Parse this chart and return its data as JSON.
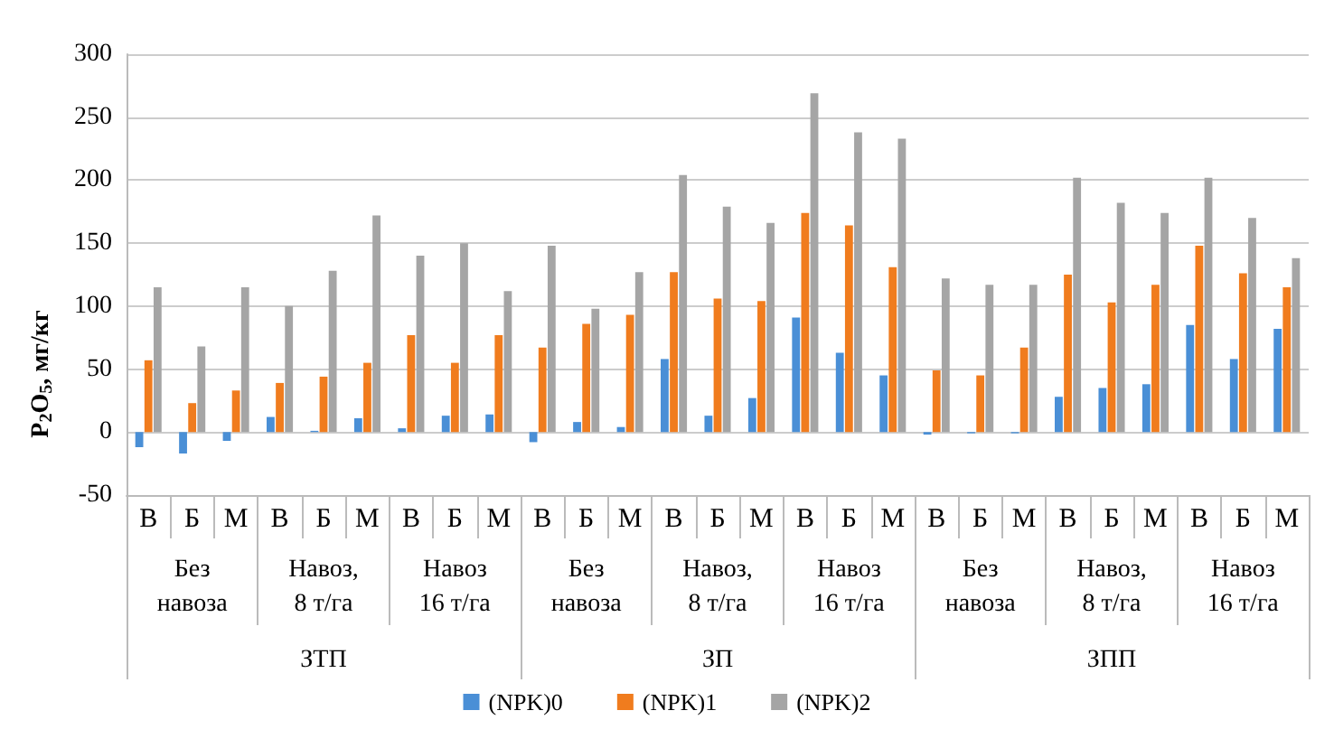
{
  "chart_data": {
    "type": "bar",
    "ylabel": "P$_{2}$O$_{5}$, мг/кг",
    "categories": [
      "В",
      "Б",
      "М",
      "В",
      "Б",
      "М",
      "В",
      "Б",
      "М",
      "В",
      "Б",
      "М",
      "В",
      "Б",
      "М",
      "В",
      "Б",
      "М",
      "В",
      "Б",
      "М",
      "В",
      "Б",
      "М",
      "В",
      "Б",
      "М"
    ],
    "series": [
      {
        "name": "(NPK)0",
        "color": "#4a8fd6",
        "values": [
          -12,
          -17,
          -7,
          12,
          1,
          11,
          3,
          13,
          14,
          -8,
          8,
          4,
          58,
          13,
          27,
          91,
          63,
          45,
          -2,
          -1,
          -1,
          28,
          35,
          38,
          85,
          58,
          82
        ]
      },
      {
        "name": "(NPK)1",
        "color": "#f07c1e",
        "values": [
          57,
          23,
          33,
          39,
          44,
          55,
          77,
          55,
          77,
          67,
          86,
          93,
          127,
          106,
          104,
          174,
          164,
          131,
          49,
          45,
          67,
          125,
          103,
          117,
          148,
          126,
          115
        ]
      },
      {
        "name": "(NPK)2",
        "color": "#a5a5a5",
        "values": [
          115,
          68,
          115,
          100,
          128,
          172,
          140,
          150,
          112,
          148,
          98,
          127,
          204,
          179,
          166,
          269,
          238,
          233,
          122,
          117,
          117,
          202,
          182,
          174,
          202,
          170,
          138
        ]
      }
    ],
    "annotations": [
      "Без навоза",
      "Навоз, 8 т/га",
      "Навоз 16 т/га",
      "Без навоза",
      "Навоз, 8 т/га",
      "Навоз 16 т/га",
      "Без навоза",
      "Навоз, 8 т/га",
      "Навоз 16 т/га",
      "ЗТП",
      "ЗП",
      "ЗПП"
    ],
    "ylim": [
      -50,
      300
    ],
    "yticks": [
      -50,
      0,
      50,
      100,
      150,
      200,
      250,
      300
    ],
    "grid": "y",
    "legend": "bottom"
  }
}
